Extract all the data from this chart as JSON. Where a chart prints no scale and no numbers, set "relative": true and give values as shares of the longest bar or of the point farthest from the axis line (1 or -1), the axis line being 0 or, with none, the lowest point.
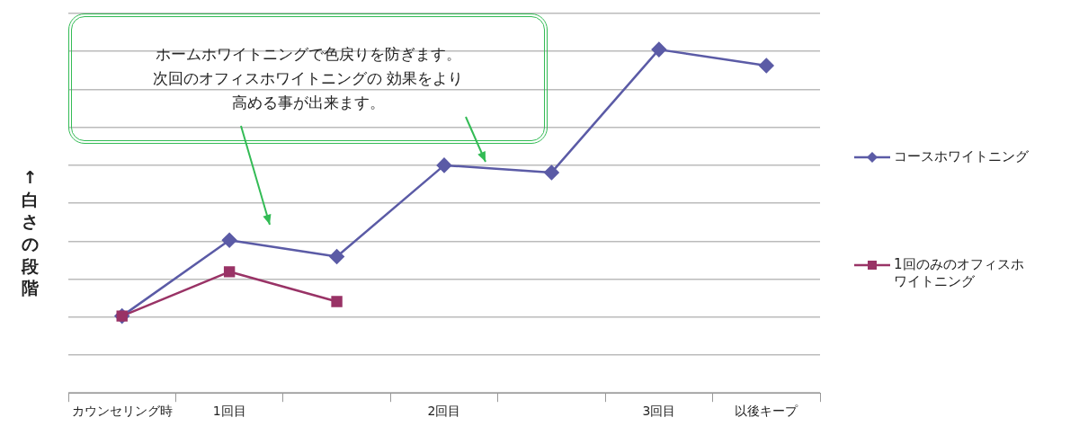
{
  "chart_data": {
    "type": "line",
    "relative": true,
    "ylabel": "↑白さの段階",
    "categories": [
      "カウンセリング時",
      "1回目",
      null,
      "2回目",
      null,
      "3回目",
      "以後キープ"
    ],
    "series": [
      {
        "name": "コースホワイトニング",
        "color": "#5b5ba6",
        "marker": "diamond",
        "values": [
          0.224,
          0.445,
          0.397,
          0.663,
          0.642,
          1,
          0.953
        ]
      },
      {
        "name": "1回のみのオフィスホワイトニング",
        "color": "#993366",
        "marker": "square",
        "values": [
          0.224,
          0.353,
          0.266,
          null,
          null,
          null,
          null
        ]
      }
    ],
    "annotations": [
      "ホームホワイトニングで色戻りを防ぎます。次回のオフィスホワイトニングの 効果をより高める事が出来ます。"
    ],
    "grid": "y",
    "legend": "right",
    "line_style": "solid"
  }
}
